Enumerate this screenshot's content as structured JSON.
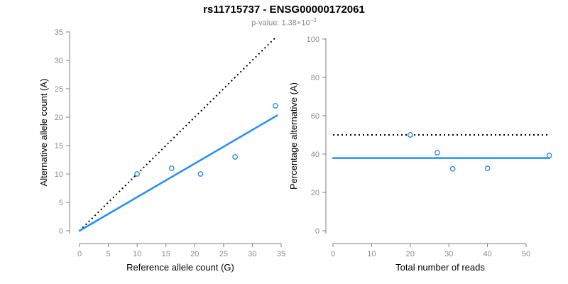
{
  "header": {
    "title": "rs11715737 - ENSG00000172061",
    "subtitle_prefix": "p-value: 1.38×10",
    "subtitle_exponent": "−3"
  },
  "colors": {
    "line_blue": "#1E90FF",
    "point_blue": "#2286DE",
    "dotted_black": "#000000",
    "axis_gray": "#7f7f7f",
    "tick_label_gray": "#8c8c8c",
    "axis_title_black": "#000000"
  },
  "chart_data": [
    {
      "type": "scatter",
      "panel": "allele-counts",
      "xlabel": "Reference allele count (G)",
      "ylabel": "Alternative allele count (A)",
      "xlim": [
        0,
        35
      ],
      "ylim": [
        0,
        35
      ],
      "xticks": [
        0,
        5,
        10,
        15,
        20,
        25,
        30,
        35
      ],
      "yticks": [
        0,
        5,
        10,
        15,
        20,
        25,
        30,
        35
      ],
      "grid": false,
      "points": [
        [
          10,
          10
        ],
        [
          16,
          11
        ],
        [
          21,
          10
        ],
        [
          27,
          13
        ],
        [
          34,
          22
        ]
      ],
      "lines": [
        {
          "name": "identity-line",
          "style": "dotted",
          "color_key": "dotted_black",
          "x1": 0,
          "y1": 0,
          "x2": 34.2,
          "y2": 34.2
        },
        {
          "name": "fit-line",
          "style": "solid",
          "color_key": "line_blue",
          "x1": 0,
          "y1": 0,
          "x2": 34.3,
          "y2": 20.3
        }
      ]
    },
    {
      "type": "scatter",
      "panel": "percentage-alternative",
      "xlabel": "Total number of reads",
      "ylabel": "Percentage alternative (A)",
      "xlim": [
        0,
        56
      ],
      "ylim": [
        0,
        100
      ],
      "xticks": [
        0,
        10,
        20,
        30,
        40,
        50
      ],
      "yticks": [
        0,
        20,
        40,
        60,
        80,
        100
      ],
      "grid": false,
      "points": [
        [
          20,
          50
        ],
        [
          27,
          40.7
        ],
        [
          31,
          32.3
        ],
        [
          40,
          32.5
        ],
        [
          56,
          39.3
        ]
      ],
      "lines": [
        {
          "name": "expected-50pct-line",
          "style": "dotted",
          "color_key": "dotted_black",
          "x1": 0,
          "y1": 50,
          "x2": 56,
          "y2": 50
        },
        {
          "name": "mean-percentage-line",
          "style": "solid",
          "color_key": "line_blue",
          "x1": 0,
          "y1": 37.9,
          "x2": 56,
          "y2": 37.9
        }
      ]
    }
  ]
}
